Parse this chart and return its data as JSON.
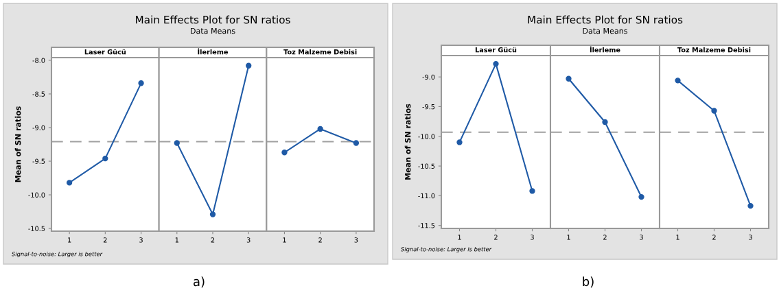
{
  "chart_data": [
    {
      "type": "line",
      "title": "Laser Gücü",
      "ylabel": "Mean of SN ratios",
      "annotations": [
        "Main Effects Plot for SN ratios",
        "Data Means",
        "Signal-to-noise: Larger is better",
        "a)"
      ],
      "categories": [
        "1",
        "2",
        "3"
      ],
      "series": [
        {
          "color": "#1f5aa6",
          "values": [
            -9.82,
            -9.46,
            -8.34
          ]
        }
      ],
      "ylim": [
        -10.54,
        -7.96
      ],
      "yticks": [
        {
          "value": -8.0,
          "label": "-8.0"
        },
        {
          "value": -8.5,
          "label": "-8.5"
        },
        {
          "value": -9.0,
          "label": "-9.0"
        },
        {
          "value": -9.5,
          "label": "-9.5"
        },
        {
          "value": -10.0,
          "label": "-10.0"
        },
        {
          "value": -10.5,
          "label": "-10.5"
        }
      ],
      "ref_lines": [
        {
          "axis": "y",
          "value": -9.21,
          "color": "#a0a0a0",
          "line_style": "dashed"
        }
      ],
      "marker": "circle",
      "grid": false,
      "legend": false
    },
    {
      "type": "line",
      "title": "İlerleme",
      "categories": [
        "1",
        "2",
        "3"
      ],
      "series": [
        {
          "color": "#1f5aa6",
          "values": [
            -9.23,
            -10.29,
            -8.08
          ]
        }
      ],
      "ylim": [
        -10.54,
        -7.96
      ],
      "ref_lines": [
        {
          "axis": "y",
          "value": -9.21,
          "color": "#a0a0a0",
          "line_style": "dashed"
        }
      ],
      "marker": "circle",
      "grid": false,
      "legend": false,
      "tick_labels": "x"
    },
    {
      "type": "line",
      "title": "Toz Malzeme Debisi",
      "categories": [
        "1",
        "2",
        "3"
      ],
      "series": [
        {
          "color": "#1f5aa6",
          "values": [
            -9.37,
            -9.02,
            -9.23
          ]
        }
      ],
      "ylim": [
        -10.54,
        -7.96
      ],
      "ref_lines": [
        {
          "axis": "y",
          "value": -9.21,
          "color": "#a0a0a0",
          "line_style": "dashed"
        }
      ],
      "marker": "circle",
      "grid": false,
      "legend": false,
      "tick_labels": "x"
    },
    {
      "type": "line",
      "title": "Laser Gücü",
      "ylabel": "Mean of SN ratios",
      "annotations": [
        "Main Effects Plot for SN ratios",
        "Data Means",
        "Signal-to-noise: Larger is better",
        "b)"
      ],
      "categories": [
        "1",
        "2",
        "3"
      ],
      "series": [
        {
          "color": "#1f5aa6",
          "values": [
            -10.1,
            -8.78,
            -10.92
          ]
        }
      ],
      "ylim": [
        -11.55,
        -8.64
      ],
      "yticks": [
        {
          "value": -9.0,
          "label": "-9.0"
        },
        {
          "value": -9.5,
          "label": "-9.5"
        },
        {
          "value": -10.0,
          "label": "-10.0"
        },
        {
          "value": -10.5,
          "label": "-10.5"
        },
        {
          "value": -11.0,
          "label": "-11.0"
        },
        {
          "value": -11.5,
          "label": "-11.5"
        }
      ],
      "ref_lines": [
        {
          "axis": "y",
          "value": -9.93,
          "color": "#a0a0a0",
          "line_style": "dashed"
        }
      ],
      "marker": "circle",
      "grid": false,
      "legend": false
    },
    {
      "type": "line",
      "title": "İlerleme",
      "categories": [
        "1",
        "2",
        "3"
      ],
      "series": [
        {
          "color": "#1f5aa6",
          "values": [
            -9.03,
            -9.76,
            -11.02
          ]
        }
      ],
      "ylim": [
        -11.55,
        -8.64
      ],
      "ref_lines": [
        {
          "axis": "y",
          "value": -9.93,
          "color": "#a0a0a0",
          "line_style": "dashed"
        }
      ],
      "marker": "circle",
      "grid": false,
      "legend": false,
      "tick_labels": "x"
    },
    {
      "type": "line",
      "title": "Toz Malzeme Debisi",
      "categories": [
        "1",
        "2",
        "3"
      ],
      "series": [
        {
          "color": "#1f5aa6",
          "values": [
            -9.06,
            -9.57,
            -11.17
          ]
        }
      ],
      "ylim": [
        -11.55,
        -8.64
      ],
      "ref_lines": [
        {
          "axis": "y",
          "value": -9.93,
          "color": "#a0a0a0",
          "line_style": "dashed"
        }
      ],
      "marker": "circle",
      "grid": false,
      "legend": false,
      "tick_labels": "x"
    }
  ]
}
